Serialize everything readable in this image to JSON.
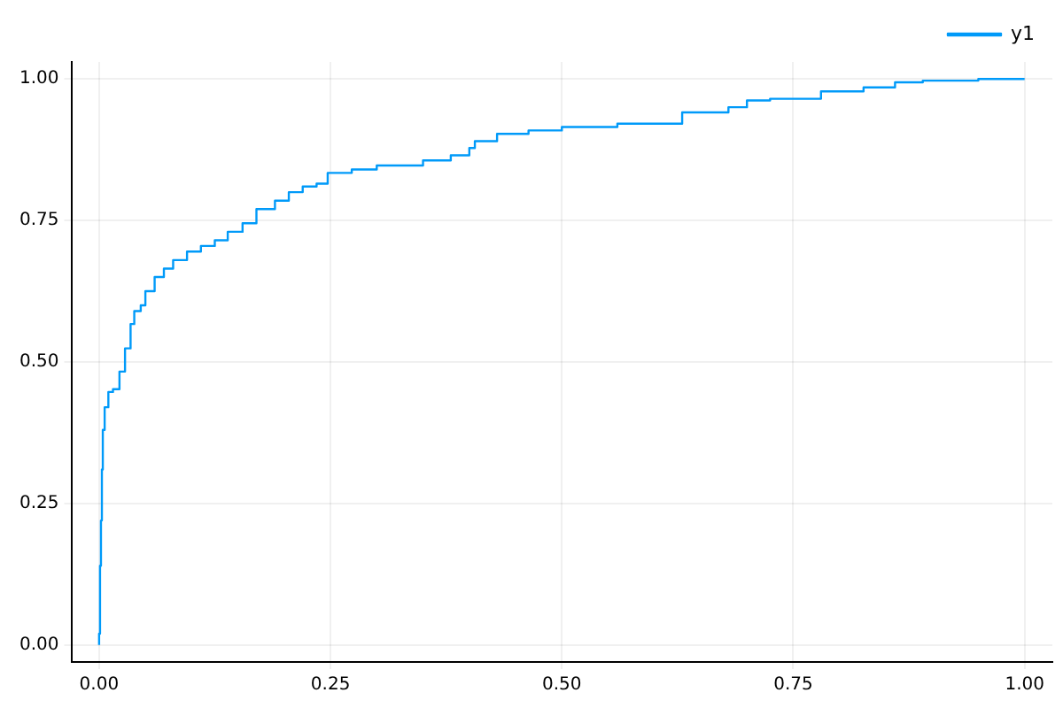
{
  "chart_data": {
    "type": "step",
    "xlim": [
      -0.03,
      1.03
    ],
    "ylim": [
      -0.03,
      1.03
    ],
    "xticks": [
      {
        "value": 0,
        "label": "0.00"
      },
      {
        "value": 0.25,
        "label": "0.25"
      },
      {
        "value": 0.5,
        "label": "0.50"
      },
      {
        "value": 0.75,
        "label": "0.75"
      },
      {
        "value": 1,
        "label": "1.00"
      }
    ],
    "yticks": [
      {
        "value": 0,
        "label": "0.00"
      },
      {
        "value": 0.25,
        "label": "0.25"
      },
      {
        "value": 0.5,
        "label": "0.50"
      },
      {
        "value": 0.75,
        "label": "0.75"
      },
      {
        "value": 1,
        "label": "1.00"
      }
    ],
    "grid": true,
    "legend": "top right",
    "line_style": "solid",
    "marker": "none",
    "series": [
      {
        "name": "y1",
        "color": "#009af9",
        "x": [
          0,
          0.001,
          0.002,
          0.003,
          0.004,
          0.006,
          0.01,
          0.015,
          0.022,
          0.028,
          0.034,
          0.038,
          0.045,
          0.05,
          0.06,
          0.07,
          0.08,
          0.095,
          0.11,
          0.125,
          0.139,
          0.155,
          0.17,
          0.19,
          0.205,
          0.22,
          0.235,
          0.247,
          0.273,
          0.3,
          0.35,
          0.38,
          0.4,
          0.406,
          0.43,
          0.464,
          0.5,
          0.56,
          0.63,
          0.68,
          0.7,
          0.725,
          0.78,
          0.826,
          0.86,
          0.89,
          0.95,
          1
        ],
        "values": [
          0,
          0.02,
          0.14,
          0.22,
          0.31,
          0.38,
          0.42,
          0.447,
          0.452,
          0.483,
          0.524,
          0.567,
          0.59,
          0.6,
          0.625,
          0.65,
          0.665,
          0.68,
          0.695,
          0.705,
          0.715,
          0.73,
          0.745,
          0.77,
          0.785,
          0.8,
          0.81,
          0.815,
          0.834,
          0.84,
          0.847,
          0.856,
          0.865,
          0.878,
          0.89,
          0.903,
          0.909,
          0.915,
          0.921,
          0.941,
          0.95,
          0.962,
          0.965,
          0.978,
          0.985,
          0.994,
          0.997,
          1
        ]
      }
    ]
  }
}
